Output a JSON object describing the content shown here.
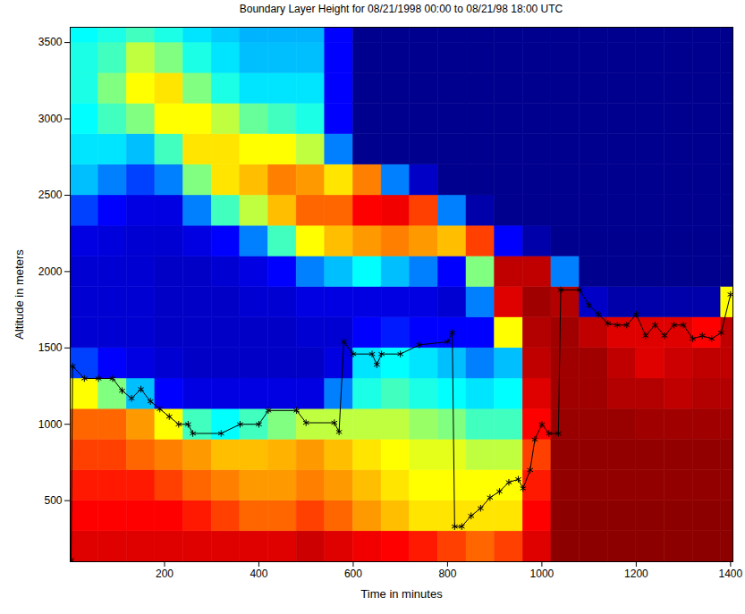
{
  "chart_data": {
    "type": "heatmap",
    "title": "Boundary Layer Height for 08/21/1998 00:00 to 08/21/98 18:00 UTC",
    "x_label": "Time in minutes",
    "y_label": "Altitude in meters",
    "xlim": [
      0,
      1405
    ],
    "ylim": [
      100,
      3600
    ],
    "xticks": [
      200,
      400,
      600,
      800,
      1000,
      1200,
      1400
    ],
    "yticks": [
      500,
      1000,
      1500,
      2000,
      2500,
      3000,
      3500
    ],
    "heatmap": {
      "x_bins": [
        0,
        60,
        120,
        180,
        240,
        300,
        360,
        420,
        480,
        540,
        600,
        660,
        720,
        780,
        840,
        900,
        960,
        1020,
        1080,
        1140,
        1200,
        1260,
        1320,
        1380,
        1440
      ],
      "y_bins": [
        100,
        300,
        500,
        700,
        900,
        1100,
        1300,
        1500,
        1700,
        1900,
        2100,
        2300,
        2500,
        2700,
        2900,
        3100,
        3300,
        3500,
        3700
      ],
      "zlim": [
        0,
        1
      ],
      "z": [
        [
          0.85,
          0.8,
          0.78,
          0.75,
          0.72,
          0.6,
          0.25,
          0.12,
          0.12,
          0.12,
          0.15,
          0.25,
          0.35,
          0.38,
          0.4,
          0.42,
          0.42,
          0.4
        ],
        [
          0.85,
          0.8,
          0.78,
          0.75,
          0.72,
          0.5,
          0.2,
          0.12,
          0.12,
          0.12,
          0.14,
          0.2,
          0.3,
          0.38,
          0.45,
          0.5,
          0.45,
          0.42
        ],
        [
          0.85,
          0.8,
          0.78,
          0.72,
          0.68,
          0.35,
          0.15,
          0.12,
          0.12,
          0.12,
          0.12,
          0.15,
          0.25,
          0.35,
          0.5,
          0.6,
          0.55,
          0.45
        ],
        [
          0.85,
          0.8,
          0.75,
          0.7,
          0.6,
          0.2,
          0.12,
          0.1,
          0.1,
          0.1,
          0.12,
          0.15,
          0.3,
          0.45,
          0.6,
          0.62,
          0.5,
          0.42
        ],
        [
          0.85,
          0.78,
          0.72,
          0.68,
          0.45,
          0.15,
          0.1,
          0.1,
          0.1,
          0.1,
          0.15,
          0.3,
          0.5,
          0.62,
          0.6,
          0.5,
          0.42,
          0.38
        ],
        [
          0.85,
          0.75,
          0.7,
          0.65,
          0.4,
          0.15,
          0.1,
          0.1,
          0.1,
          0.12,
          0.2,
          0.45,
          0.62,
          0.62,
          0.55,
          0.42,
          0.38,
          0.36
        ],
        [
          0.85,
          0.72,
          0.68,
          0.65,
          0.45,
          0.15,
          0.1,
          0.1,
          0.12,
          0.15,
          0.3,
          0.55,
          0.65,
          0.6,
          0.48,
          0.38,
          0.35,
          0.34
        ],
        [
          0.85,
          0.72,
          0.68,
          0.66,
          0.5,
          0.15,
          0.1,
          0.1,
          0.12,
          0.2,
          0.45,
          0.65,
          0.7,
          0.6,
          0.45,
          0.38,
          0.35,
          0.34
        ],
        [
          0.88,
          0.75,
          0.7,
          0.68,
          0.55,
          0.15,
          0.1,
          0.12,
          0.15,
          0.3,
          0.6,
          0.72,
          0.68,
          0.55,
          0.42,
          0.38,
          0.35,
          0.34
        ],
        [
          0.85,
          0.72,
          0.68,
          0.65,
          0.55,
          0.3,
          0.15,
          0.12,
          0.15,
          0.35,
          0.65,
          0.72,
          0.62,
          0.3,
          0.2,
          0.2,
          0.2,
          0.2
        ],
        [
          0.82,
          0.68,
          0.65,
          0.62,
          0.55,
          0.42,
          0.38,
          0.2,
          0.15,
          0.4,
          0.68,
          0.8,
          0.7,
          0,
          0,
          0,
          0,
          0
        ],
        [
          0.8,
          0.65,
          0.62,
          0.6,
          0.55,
          0.45,
          0.4,
          0.22,
          0.15,
          0.35,
          0.7,
          0.82,
          0.3,
          0,
          0,
          0,
          0,
          0
        ],
        [
          0.78,
          0.62,
          0.6,
          0.58,
          0.52,
          0.42,
          0.38,
          0.2,
          0.15,
          0.3,
          0.68,
          0.75,
          0.1,
          0,
          0,
          0,
          0,
          0
        ],
        [
          0.75,
          0.62,
          0.6,
          0.58,
          0.5,
          0.4,
          0.35,
          0.2,
          0.12,
          0.2,
          0.65,
          0.3,
          0,
          0,
          0,
          0,
          0,
          0
        ],
        [
          0.72,
          0.62,
          0.6,
          0.55,
          0.45,
          0.38,
          0.3,
          0.2,
          0.3,
          0.5,
          0.75,
          0.05,
          0,
          0,
          0,
          0,
          0,
          0
        ],
        [
          0.75,
          0.62,
          0.6,
          0.55,
          0.45,
          0.4,
          0.35,
          0.6,
          0.85,
          0.9,
          0.2,
          0,
          0,
          0,
          0,
          0,
          0,
          0
        ],
        [
          0.85,
          0.8,
          0.78,
          0.75,
          0.8,
          0.85,
          0.9,
          0.92,
          0.95,
          0.9,
          0.05,
          0,
          0,
          0,
          0,
          0,
          0,
          0
        ],
        [
          0.98,
          0.98,
          0.97,
          0.97,
          0.96,
          0.95,
          0.95,
          0.95,
          0.92,
          0.3,
          0,
          0,
          0,
          0,
          0,
          0,
          0,
          0
        ],
        [
          0.98,
          0.98,
          0.97,
          0.97,
          0.96,
          0.95,
          0.95,
          0.9,
          0.1,
          0,
          0,
          0,
          0,
          0,
          0,
          0,
          0,
          0
        ],
        [
          0.98,
          0.98,
          0.97,
          0.97,
          0.96,
          0.92,
          0.9,
          0.85,
          0.05,
          0,
          0,
          0,
          0,
          0,
          0,
          0,
          0,
          0
        ],
        [
          0.98,
          0.98,
          0.97,
          0.97,
          0.95,
          0.92,
          0.85,
          0.85,
          0.05,
          0,
          0,
          0,
          0,
          0,
          0,
          0,
          0,
          0
        ],
        [
          0.98,
          0.98,
          0.97,
          0.97,
          0.95,
          0.9,
          0.88,
          0.85,
          0.05,
          0,
          0,
          0,
          0,
          0,
          0,
          0,
          0,
          0
        ],
        [
          0.98,
          0.98,
          0.97,
          0.97,
          0.95,
          0.92,
          0.9,
          0.8,
          0.05,
          0,
          0,
          0,
          0,
          0,
          0,
          0,
          0,
          0
        ],
        [
          0.98,
          0.98,
          0.97,
          0.97,
          0.95,
          0.92,
          0.9,
          0.9,
          0.6,
          0,
          0,
          0,
          0,
          0,
          0,
          0,
          0,
          0
        ]
      ]
    },
    "series": [
      {
        "color": "#000000",
        "marker": "asterisk",
        "line_style": "solid",
        "x": [
          2,
          5,
          30,
          60,
          90,
          110,
          130,
          150,
          170,
          190,
          210,
          230,
          250,
          260,
          320,
          360,
          400,
          420,
          480,
          500,
          560,
          570,
          580,
          600,
          640,
          650,
          660,
          700,
          740,
          800,
          810,
          815,
          830,
          850,
          870,
          890,
          910,
          930,
          950,
          960,
          975,
          985,
          1000,
          1015,
          1035,
          1040,
          1080,
          1100,
          1120,
          1140,
          1160,
          1180,
          1200,
          1220,
          1240,
          1260,
          1280,
          1300,
          1320,
          1340,
          1360,
          1380,
          1400
        ],
        "y": [
          110,
          1380,
          1300,
          1300,
          1300,
          1220,
          1170,
          1230,
          1150,
          1100,
          1050,
          1000,
          1000,
          940,
          940,
          1000,
          1000,
          1090,
          1090,
          1010,
          1010,
          950,
          1540,
          1460,
          1460,
          1390,
          1460,
          1460,
          1520,
          1540,
          1600,
          330,
          330,
          400,
          450,
          520,
          560,
          620,
          640,
          580,
          700,
          900,
          1000,
          940,
          940,
          1880,
          1880,
          1780,
          1720,
          1660,
          1650,
          1650,
          1720,
          1580,
          1650,
          1580,
          1650,
          1650,
          1560,
          1580,
          1560,
          1600,
          1850
        ]
      }
    ]
  }
}
